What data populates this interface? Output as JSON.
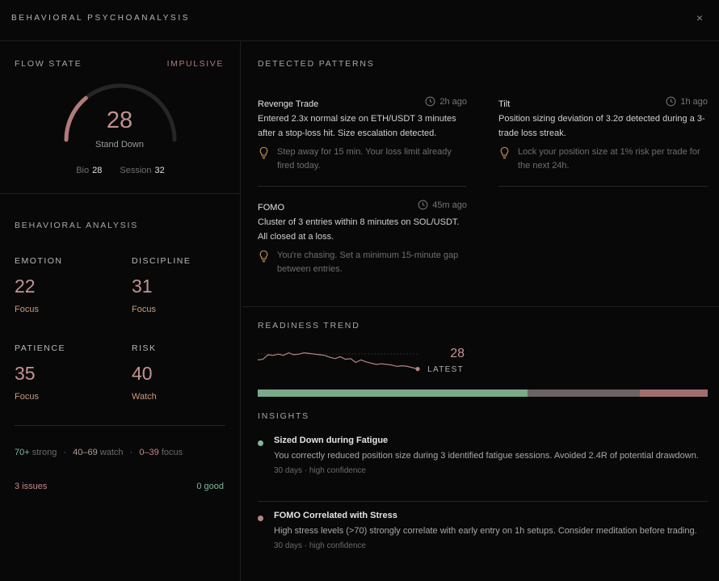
{
  "header": {
    "title": "BEHAVIORAL PSYCHOANALYSIS",
    "close_label": "×"
  },
  "flow_state": {
    "label": "FLOW STATE",
    "badge": "IMPULSIVE",
    "score": "28",
    "score_fraction": 0.28,
    "status": "Stand Down",
    "bio_label": "Bio",
    "bio_value": "28",
    "session_label": "Session",
    "session_value": "32",
    "colors": {
      "gauge_fill": "#b27a7a",
      "gauge_track": "#262626"
    }
  },
  "behavioral_analysis": {
    "label": "BEHAVIORAL ANALYSIS",
    "metrics": [
      {
        "name": "EMOTION",
        "value": "22",
        "tag": "Focus"
      },
      {
        "name": "DISCIPLINE",
        "value": "31",
        "tag": "Focus"
      },
      {
        "name": "PATIENCE",
        "value": "35",
        "tag": "Focus"
      },
      {
        "name": "RISK",
        "value": "40",
        "tag": "Watch"
      }
    ],
    "legend": {
      "strong_range": "70+",
      "strong_word": "strong",
      "watch_range": "40–69",
      "watch_word": "watch",
      "focus_range": "0–39",
      "focus_word": "focus",
      "separator": "·"
    },
    "issues": "3 issues",
    "good": "0 good"
  },
  "detected_patterns": {
    "label": "DETECTED PATTERNS",
    "items": [
      {
        "title": "Revenge Trade",
        "time": "2h ago",
        "description": "Entered 2.3x normal size on ETH/USDT 3 minutes after a stop-loss hit. Size escalation detected.",
        "tip": "Step away for 15 min. Your loss limit already fired today."
      },
      {
        "title": "Tilt",
        "time": "1h ago",
        "description": "Position sizing deviation of 3.2σ detected during a 3-trade loss streak.",
        "tip": "Lock your position size at 1% risk per trade for the next 24h."
      },
      {
        "title": "FOMO",
        "time": "45m ago",
        "description": "Cluster of 3 entries within 8 minutes on SOL/USDT. All closed at a loss.",
        "tip": "You're chasing. Set a minimum 15-minute gap between entries."
      }
    ]
  },
  "readiness_trend": {
    "label": "READINESS TREND",
    "latest_value": "28",
    "latest_label": "LATEST",
    "series": [
      42,
      43,
      50,
      49,
      51,
      49,
      53,
      50,
      51,
      53,
      52,
      51,
      50,
      49,
      46,
      44,
      47,
      43,
      44,
      38,
      42,
      39,
      37,
      35,
      36,
      35,
      34,
      32,
      33,
      32,
      30,
      28
    ],
    "distribution": [
      {
        "fraction": 0.6,
        "color": "#7aa98b"
      },
      {
        "fraction": 0.25,
        "color": "#6b6462"
      },
      {
        "fraction": 0.15,
        "color": "#a06e71"
      }
    ],
    "colors": {
      "line": "#b88585"
    }
  },
  "insights": {
    "label": "INSIGHTS",
    "items": [
      {
        "title": "Sized Down during Fatigue",
        "description": "You correctly reduced position size during 3 identified fatigue sessions. Avoided 2.4R of potential drawdown.",
        "meta": "30 days · high confidence",
        "dot_color": "#7fb79a"
      },
      {
        "title": "FOMO Correlated with Stress",
        "description": "High stress levels (>70) strongly correlate with early entry on 1h setups. Consider meditation before trading.",
        "meta": "30 days · high confidence",
        "dot_color": "#b58585"
      }
    ]
  }
}
